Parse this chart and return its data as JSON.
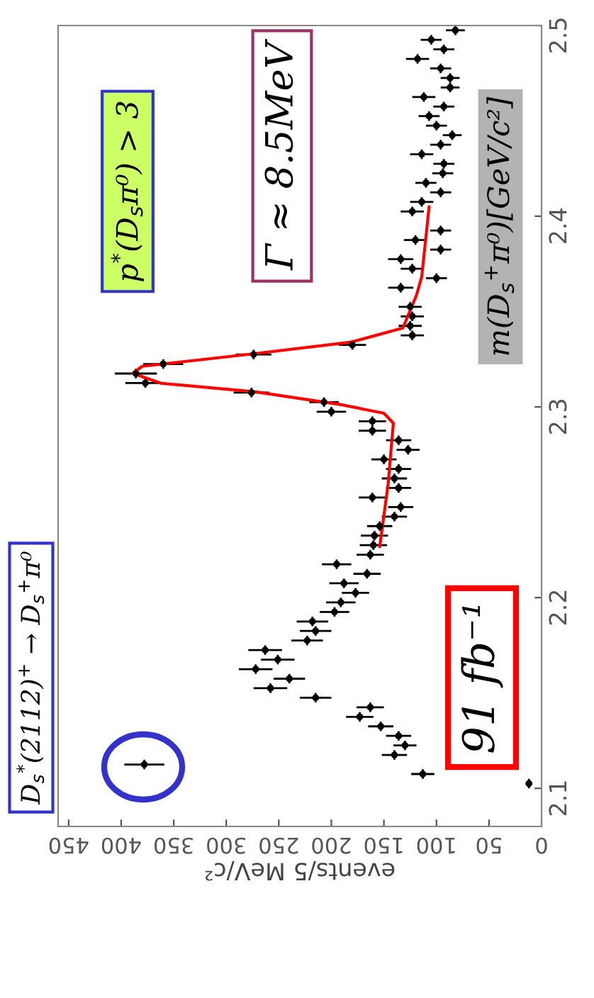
{
  "chart_data": {
    "type": "scatter",
    "orientation": "horizontal",
    "line_style": "solid",
    "xlabel": "events/5 MeV/c²",
    "ylabel": "m(D$_{s}$$^{+}$π⁰)[GeV/c²]",
    "annotations": [
      "D$_{s}$$^{*}$(2112)$^{+}$ → D$_{s}$$^{+}$π⁰",
      "91 fb⁻¹",
      "Γ ≈ 8.5MeV",
      "p$^{*}$(D$_{s}$π⁰) > 3"
    ],
    "xlim": [
      460,
      0
    ],
    "xticks": [
      0,
      50,
      100,
      150,
      200,
      250,
      300,
      350,
      400,
      450
    ],
    "ylim": [
      2.08,
      2.5
    ],
    "yticks": [
      2.1,
      2.2,
      2.3,
      2.4,
      2.5
    ],
    "series": [
      {
        "marker": "circle",
        "color": "#000000",
        "x": [
          2.1025,
          2.1075,
          2.1125,
          2.1175,
          2.1225,
          2.1275,
          2.1325,
          2.1375,
          2.1425,
          2.1475,
          2.1525,
          2.1575,
          2.1625,
          2.1675,
          2.1725,
          2.1775,
          2.1825,
          2.1875,
          2.1925,
          2.1975,
          2.2025,
          2.2075,
          2.2125,
          2.2175,
          2.2225,
          2.2275,
          2.2325,
          2.2375,
          2.2425,
          2.2475,
          2.2525,
          2.2575,
          2.2625,
          2.2675,
          2.2725,
          2.2775,
          2.2825,
          2.2875,
          2.2925,
          2.2975,
          2.3025,
          2.3075,
          2.3125,
          2.3175,
          2.3225,
          2.3275,
          2.3325,
          2.3375,
          2.3425,
          2.3475,
          2.3525,
          2.3625,
          2.3675,
          2.3725,
          2.3775,
          2.3825,
          2.3875,
          2.3925,
          2.4025,
          2.4075,
          2.4125,
          2.4175,
          2.4225,
          2.4275,
          2.4325,
          2.4375,
          2.4425,
          2.4475,
          2.4525,
          2.4575,
          2.4625,
          2.4675,
          2.4725,
          2.4775,
          2.4825,
          2.4875,
          2.4925,
          2.4975
        ],
        "values": [
          12,
          113,
          378,
          140,
          130,
          136,
          153,
          173,
          163,
          215,
          258,
          240,
          272,
          251,
          263,
          223,
          215,
          218,
          197,
          191,
          177,
          188,
          166,
          195,
          163,
          160,
          159,
          154,
          140,
          134,
          161,
          136,
          140,
          136,
          150,
          127,
          136,
          161,
          161,
          200,
          207,
          276,
          377,
          386,
          360,
          274,
          180,
          123,
          125,
          123,
          125,
          134,
          100,
          123,
          134,
          96,
          120,
          96,
          123,
          114,
          96,
          110,
          94,
          93,
          114,
          96,
          85,
          100,
          107,
          93,
          112,
          87,
          87,
          96,
          118,
          93,
          105,
          82
        ],
        "errors": [
          3,
          11,
          19,
          12,
          11,
          12,
          12,
          13,
          13,
          15,
          16,
          15,
          16,
          16,
          16,
          15,
          15,
          15,
          14,
          14,
          13,
          14,
          13,
          14,
          13,
          13,
          13,
          12,
          12,
          12,
          13,
          12,
          12,
          12,
          12,
          11,
          12,
          13,
          13,
          14,
          14,
          17,
          19,
          20,
          19,
          17,
          13,
          11,
          11,
          11,
          11,
          12,
          10,
          11,
          12,
          10,
          11,
          10,
          11,
          11,
          10,
          10,
          10,
          10,
          11,
          10,
          9,
          10,
          10,
          10,
          11,
          9,
          9,
          10,
          11,
          10,
          10,
          9
        ],
        "xerrors": [
          0.0025,
          0.0025,
          0.0025,
          0.0025,
          0.0025,
          0.0025,
          0.0025,
          0.0025,
          0.0025,
          0.0025,
          0.0025,
          0.0025,
          0.0025,
          0.0025,
          0.0025,
          0.0025,
          0.0025,
          0.0025,
          0.0025,
          0.0025,
          0.0025,
          0.0025,
          0.0025,
          0.0025,
          0.0025,
          0.0025,
          0.0025,
          0.0025,
          0.0025,
          0.0025,
          0.0025,
          0.0025,
          0.0025,
          0.0025,
          0.0025,
          0.0025,
          0.0025,
          0.0025,
          0.0025,
          0.0025,
          0.0025,
          0.0025,
          0.0025,
          0.0025,
          0.0025,
          0.0025,
          0.0025,
          0.0025,
          0.0025,
          0.0025,
          0.0025,
          0.0025,
          0.0025,
          0.0025,
          0.0025,
          0.0025,
          0.0025,
          0.0025,
          0.0025,
          0.0025,
          0.0025,
          0.0025,
          0.0025,
          0.0025,
          0.0025,
          0.0025,
          0.0025,
          0.0025,
          0.0025,
          0.0025,
          0.0025,
          0.0025,
          0.0025,
          0.0025,
          0.0025,
          0.0025,
          0.0025,
          0.0025
        ]
      },
      {
        "type": "line",
        "color": "#ff0000",
        "x": [
          2.2267,
          2.2595,
          2.2915,
          2.2967,
          2.3012,
          2.3079,
          2.3124,
          2.3176,
          2.3213,
          2.328,
          2.334,
          2.3414,
          2.3586,
          2.3683,
          2.405
        ],
        "values": [
          154,
          146,
          141,
          150,
          191,
          272,
          362,
          389,
          380,
          272,
          181,
          132,
          119,
          114,
          107
        ]
      }
    ]
  }
}
